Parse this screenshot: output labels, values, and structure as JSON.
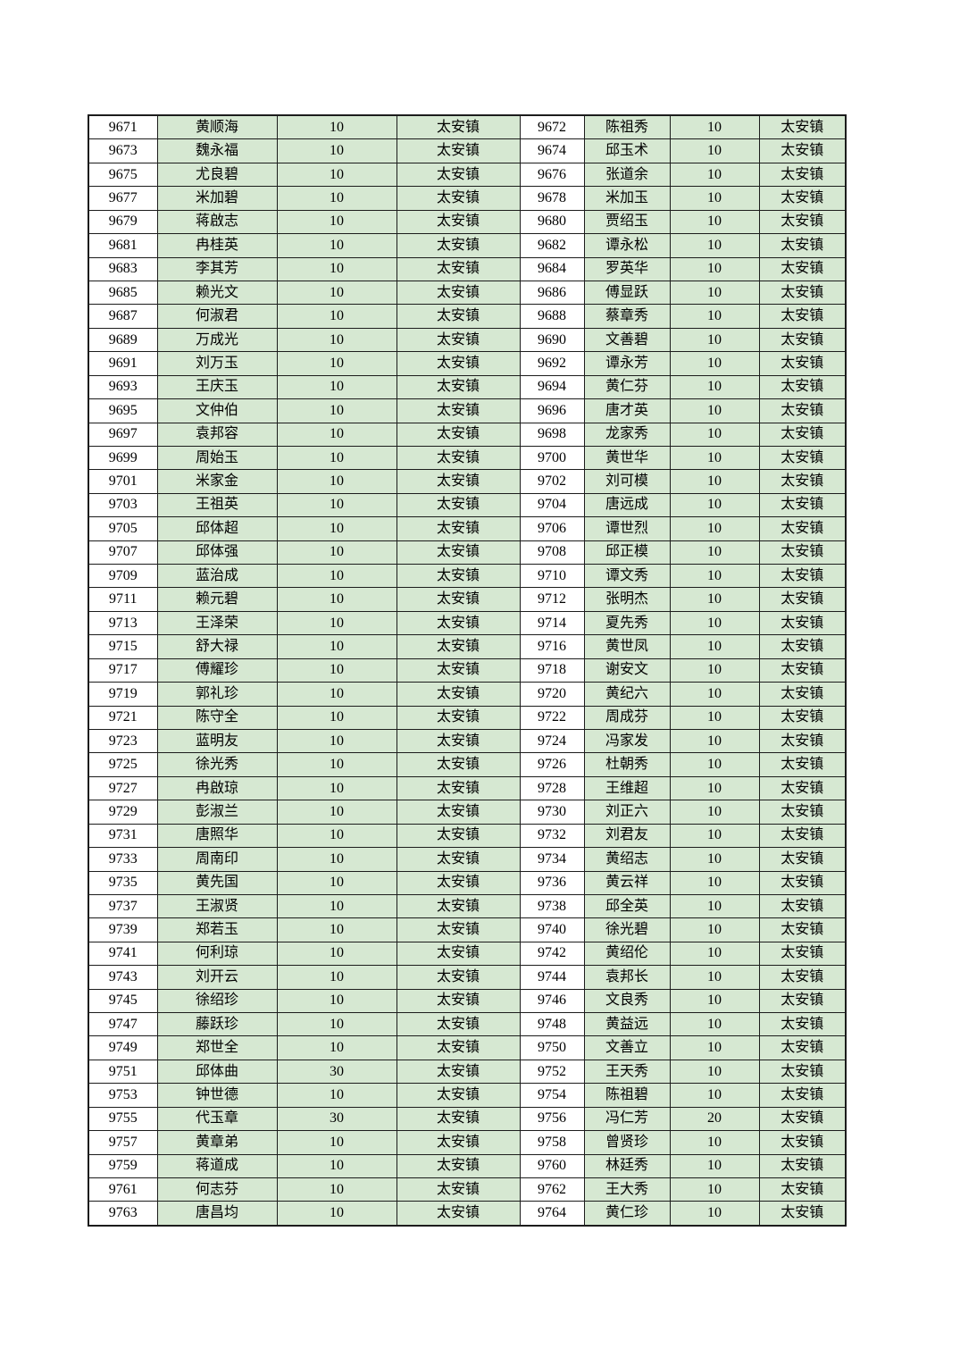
{
  "page": {
    "background": "#ffffff"
  },
  "colors": {
    "cell_green": "#d6e8d2",
    "id_cell_white": "#ffffff",
    "grid_line": "#1c1c1c",
    "text": "#000000"
  },
  "table": {
    "columns": [
      "id",
      "name",
      "value",
      "town",
      "id",
      "name",
      "value",
      "town"
    ],
    "rows": [
      [
        "9671",
        "黄顺海",
        "10",
        "太安镇",
        "9672",
        "陈祖秀",
        "10",
        "太安镇"
      ],
      [
        "9673",
        "魏永福",
        "10",
        "太安镇",
        "9674",
        "邱玉术",
        "10",
        "太安镇"
      ],
      [
        "9675",
        "尤良碧",
        "10",
        "太安镇",
        "9676",
        "张道余",
        "10",
        "太安镇"
      ],
      [
        "9677",
        "米加碧",
        "10",
        "太安镇",
        "9678",
        "米加玉",
        "10",
        "太安镇"
      ],
      [
        "9679",
        "蒋啟志",
        "10",
        "太安镇",
        "9680",
        "贾绍玉",
        "10",
        "太安镇"
      ],
      [
        "9681",
        "冉桂英",
        "10",
        "太安镇",
        "9682",
        "谭永松",
        "10",
        "太安镇"
      ],
      [
        "9683",
        "李其芳",
        "10",
        "太安镇",
        "9684",
        "罗英华",
        "10",
        "太安镇"
      ],
      [
        "9685",
        "赖光文",
        "10",
        "太安镇",
        "9686",
        "傅显跃",
        "10",
        "太安镇"
      ],
      [
        "9687",
        "何淑君",
        "10",
        "太安镇",
        "9688",
        "蔡章秀",
        "10",
        "太安镇"
      ],
      [
        "9689",
        "万成光",
        "10",
        "太安镇",
        "9690",
        "文善碧",
        "10",
        "太安镇"
      ],
      [
        "9691",
        "刘万玉",
        "10",
        "太安镇",
        "9692",
        "谭永芳",
        "10",
        "太安镇"
      ],
      [
        "9693",
        "王庆玉",
        "10",
        "太安镇",
        "9694",
        "黄仁芬",
        "10",
        "太安镇"
      ],
      [
        "9695",
        "文仲伯",
        "10",
        "太安镇",
        "9696",
        "唐才英",
        "10",
        "太安镇"
      ],
      [
        "9697",
        "袁邦容",
        "10",
        "太安镇",
        "9698",
        "龙家秀",
        "10",
        "太安镇"
      ],
      [
        "9699",
        "周始玉",
        "10",
        "太安镇",
        "9700",
        "黄世华",
        "10",
        "太安镇"
      ],
      [
        "9701",
        "米家金",
        "10",
        "太安镇",
        "9702",
        "刘可模",
        "10",
        "太安镇"
      ],
      [
        "9703",
        "王祖英",
        "10",
        "太安镇",
        "9704",
        "唐远成",
        "10",
        "太安镇"
      ],
      [
        "9705",
        "邱体超",
        "10",
        "太安镇",
        "9706",
        "谭世烈",
        "10",
        "太安镇"
      ],
      [
        "9707",
        "邱体强",
        "10",
        "太安镇",
        "9708",
        "邱正模",
        "10",
        "太安镇"
      ],
      [
        "9709",
        "蓝治成",
        "10",
        "太安镇",
        "9710",
        "谭文秀",
        "10",
        "太安镇"
      ],
      [
        "9711",
        "赖元碧",
        "10",
        "太安镇",
        "9712",
        "张明杰",
        "10",
        "太安镇"
      ],
      [
        "9713",
        "王泽荣",
        "10",
        "太安镇",
        "9714",
        "夏先秀",
        "10",
        "太安镇"
      ],
      [
        "9715",
        "舒大禄",
        "10",
        "太安镇",
        "9716",
        "黄世凤",
        "10",
        "太安镇"
      ],
      [
        "9717",
        "傅耀珍",
        "10",
        "太安镇",
        "9718",
        "谢安文",
        "10",
        "太安镇"
      ],
      [
        "9719",
        "郭礼珍",
        "10",
        "太安镇",
        "9720",
        "黄纪六",
        "10",
        "太安镇"
      ],
      [
        "9721",
        "陈守全",
        "10",
        "太安镇",
        "9722",
        "周成芬",
        "10",
        "太安镇"
      ],
      [
        "9723",
        "蓝明友",
        "10",
        "太安镇",
        "9724",
        "冯家发",
        "10",
        "太安镇"
      ],
      [
        "9725",
        "徐光秀",
        "10",
        "太安镇",
        "9726",
        "杜朝秀",
        "10",
        "太安镇"
      ],
      [
        "9727",
        "冉啟琼",
        "10",
        "太安镇",
        "9728",
        "王维超",
        "10",
        "太安镇"
      ],
      [
        "9729",
        "彭淑兰",
        "10",
        "太安镇",
        "9730",
        "刘正六",
        "10",
        "太安镇"
      ],
      [
        "9731",
        "唐照华",
        "10",
        "太安镇",
        "9732",
        "刘君友",
        "10",
        "太安镇"
      ],
      [
        "9733",
        "周南印",
        "10",
        "太安镇",
        "9734",
        "黄绍志",
        "10",
        "太安镇"
      ],
      [
        "9735",
        "黄先国",
        "10",
        "太安镇",
        "9736",
        "黄云祥",
        "10",
        "太安镇"
      ],
      [
        "9737",
        "王淑贤",
        "10",
        "太安镇",
        "9738",
        "邱全英",
        "10",
        "太安镇"
      ],
      [
        "9739",
        "郑若玉",
        "10",
        "太安镇",
        "9740",
        "徐光碧",
        "10",
        "太安镇"
      ],
      [
        "9741",
        "何利琼",
        "10",
        "太安镇",
        "9742",
        "黄绍伦",
        "10",
        "太安镇"
      ],
      [
        "9743",
        "刘开云",
        "10",
        "太安镇",
        "9744",
        "袁邦长",
        "10",
        "太安镇"
      ],
      [
        "9745",
        "徐绍珍",
        "10",
        "太安镇",
        "9746",
        "文良秀",
        "10",
        "太安镇"
      ],
      [
        "9747",
        "藤跃珍",
        "10",
        "太安镇",
        "9748",
        "黄益远",
        "10",
        "太安镇"
      ],
      [
        "9749",
        "郑世全",
        "10",
        "太安镇",
        "9750",
        "文善立",
        "10",
        "太安镇"
      ],
      [
        "9751",
        "邱体曲",
        "30",
        "太安镇",
        "9752",
        "王天秀",
        "10",
        "太安镇"
      ],
      [
        "9753",
        "钟世德",
        "10",
        "太安镇",
        "9754",
        "陈祖碧",
        "10",
        "太安镇"
      ],
      [
        "9755",
        "代玉章",
        "30",
        "太安镇",
        "9756",
        "冯仁芳",
        "20",
        "太安镇"
      ],
      [
        "9757",
        "黄章弟",
        "10",
        "太安镇",
        "9758",
        "曾贤珍",
        "10",
        "太安镇"
      ],
      [
        "9759",
        "蒋道成",
        "10",
        "太安镇",
        "9760",
        "林廷秀",
        "10",
        "太安镇"
      ],
      [
        "9761",
        "何志芬",
        "10",
        "太安镇",
        "9762",
        "王大秀",
        "10",
        "太安镇"
      ],
      [
        "9763",
        "唐昌均",
        "10",
        "太安镇",
        "9764",
        "黄仁珍",
        "10",
        "太安镇"
      ]
    ]
  }
}
